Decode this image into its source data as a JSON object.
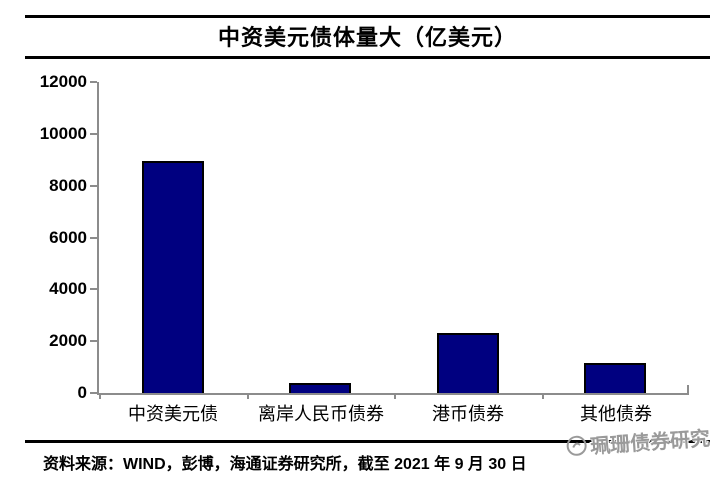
{
  "header": {
    "title": "中资美元债体量大（亿美元）"
  },
  "chart_data": {
    "type": "bar",
    "title": "中资美元债体量大（亿美元）",
    "categories": [
      "中资美元债",
      "离岸人民币债券",
      "港币债券",
      "其他债券"
    ],
    "values": [
      8950,
      400,
      2300,
      1150
    ],
    "unit": "亿美元",
    "xlabel": "",
    "ylabel": "",
    "ylim": [
      0,
      12000
    ],
    "yticks": [
      0,
      2000,
      4000,
      6000,
      8000,
      10000,
      12000
    ],
    "grid": false,
    "legend": false,
    "bar_color": "#000080",
    "bar_border_color": "#000000",
    "axis_color": "#8c8c8c"
  },
  "footer": {
    "source_text": "资料来源：WIND，彭博，海通证券研究所，截至 2021 年 9 月 30 日"
  },
  "watermark": {
    "text": "珮珊债券研究",
    "color": "#9a9a9a"
  }
}
